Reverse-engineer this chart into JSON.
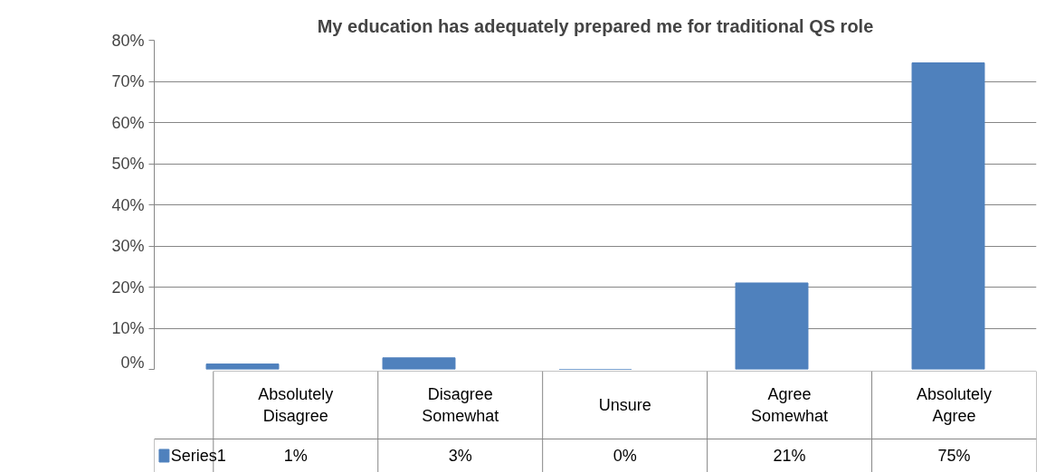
{
  "chart_data": {
    "type": "bar",
    "title": "My education has adequately prepared me for traditional QS role",
    "categories": [
      "Absolutely Disagree",
      "Disagree Somewhat",
      "Unsure",
      "Agree Somewhat",
      "Absolutely Agree"
    ],
    "series": [
      {
        "name": "Series1",
        "color": "#4f81bd",
        "values": [
          1.3,
          2.8,
          0,
          21,
          74.5
        ],
        "value_labels": [
          "1%",
          "3%",
          "0%",
          "21%",
          "75%"
        ]
      }
    ],
    "ylim": [
      0,
      80
    ],
    "yticks": [
      {
        "value": 0,
        "label": "0%"
      },
      {
        "value": 10,
        "label": "10%"
      },
      {
        "value": 20,
        "label": "20%"
      },
      {
        "value": 30,
        "label": "30%"
      },
      {
        "value": 40,
        "label": "40%"
      },
      {
        "value": 50,
        "label": "50%"
      },
      {
        "value": 60,
        "label": "60%"
      },
      {
        "value": 70,
        "label": "70%"
      },
      {
        "value": 80,
        "label": "80%"
      }
    ],
    "grid": "y",
    "legend": "bottom"
  }
}
